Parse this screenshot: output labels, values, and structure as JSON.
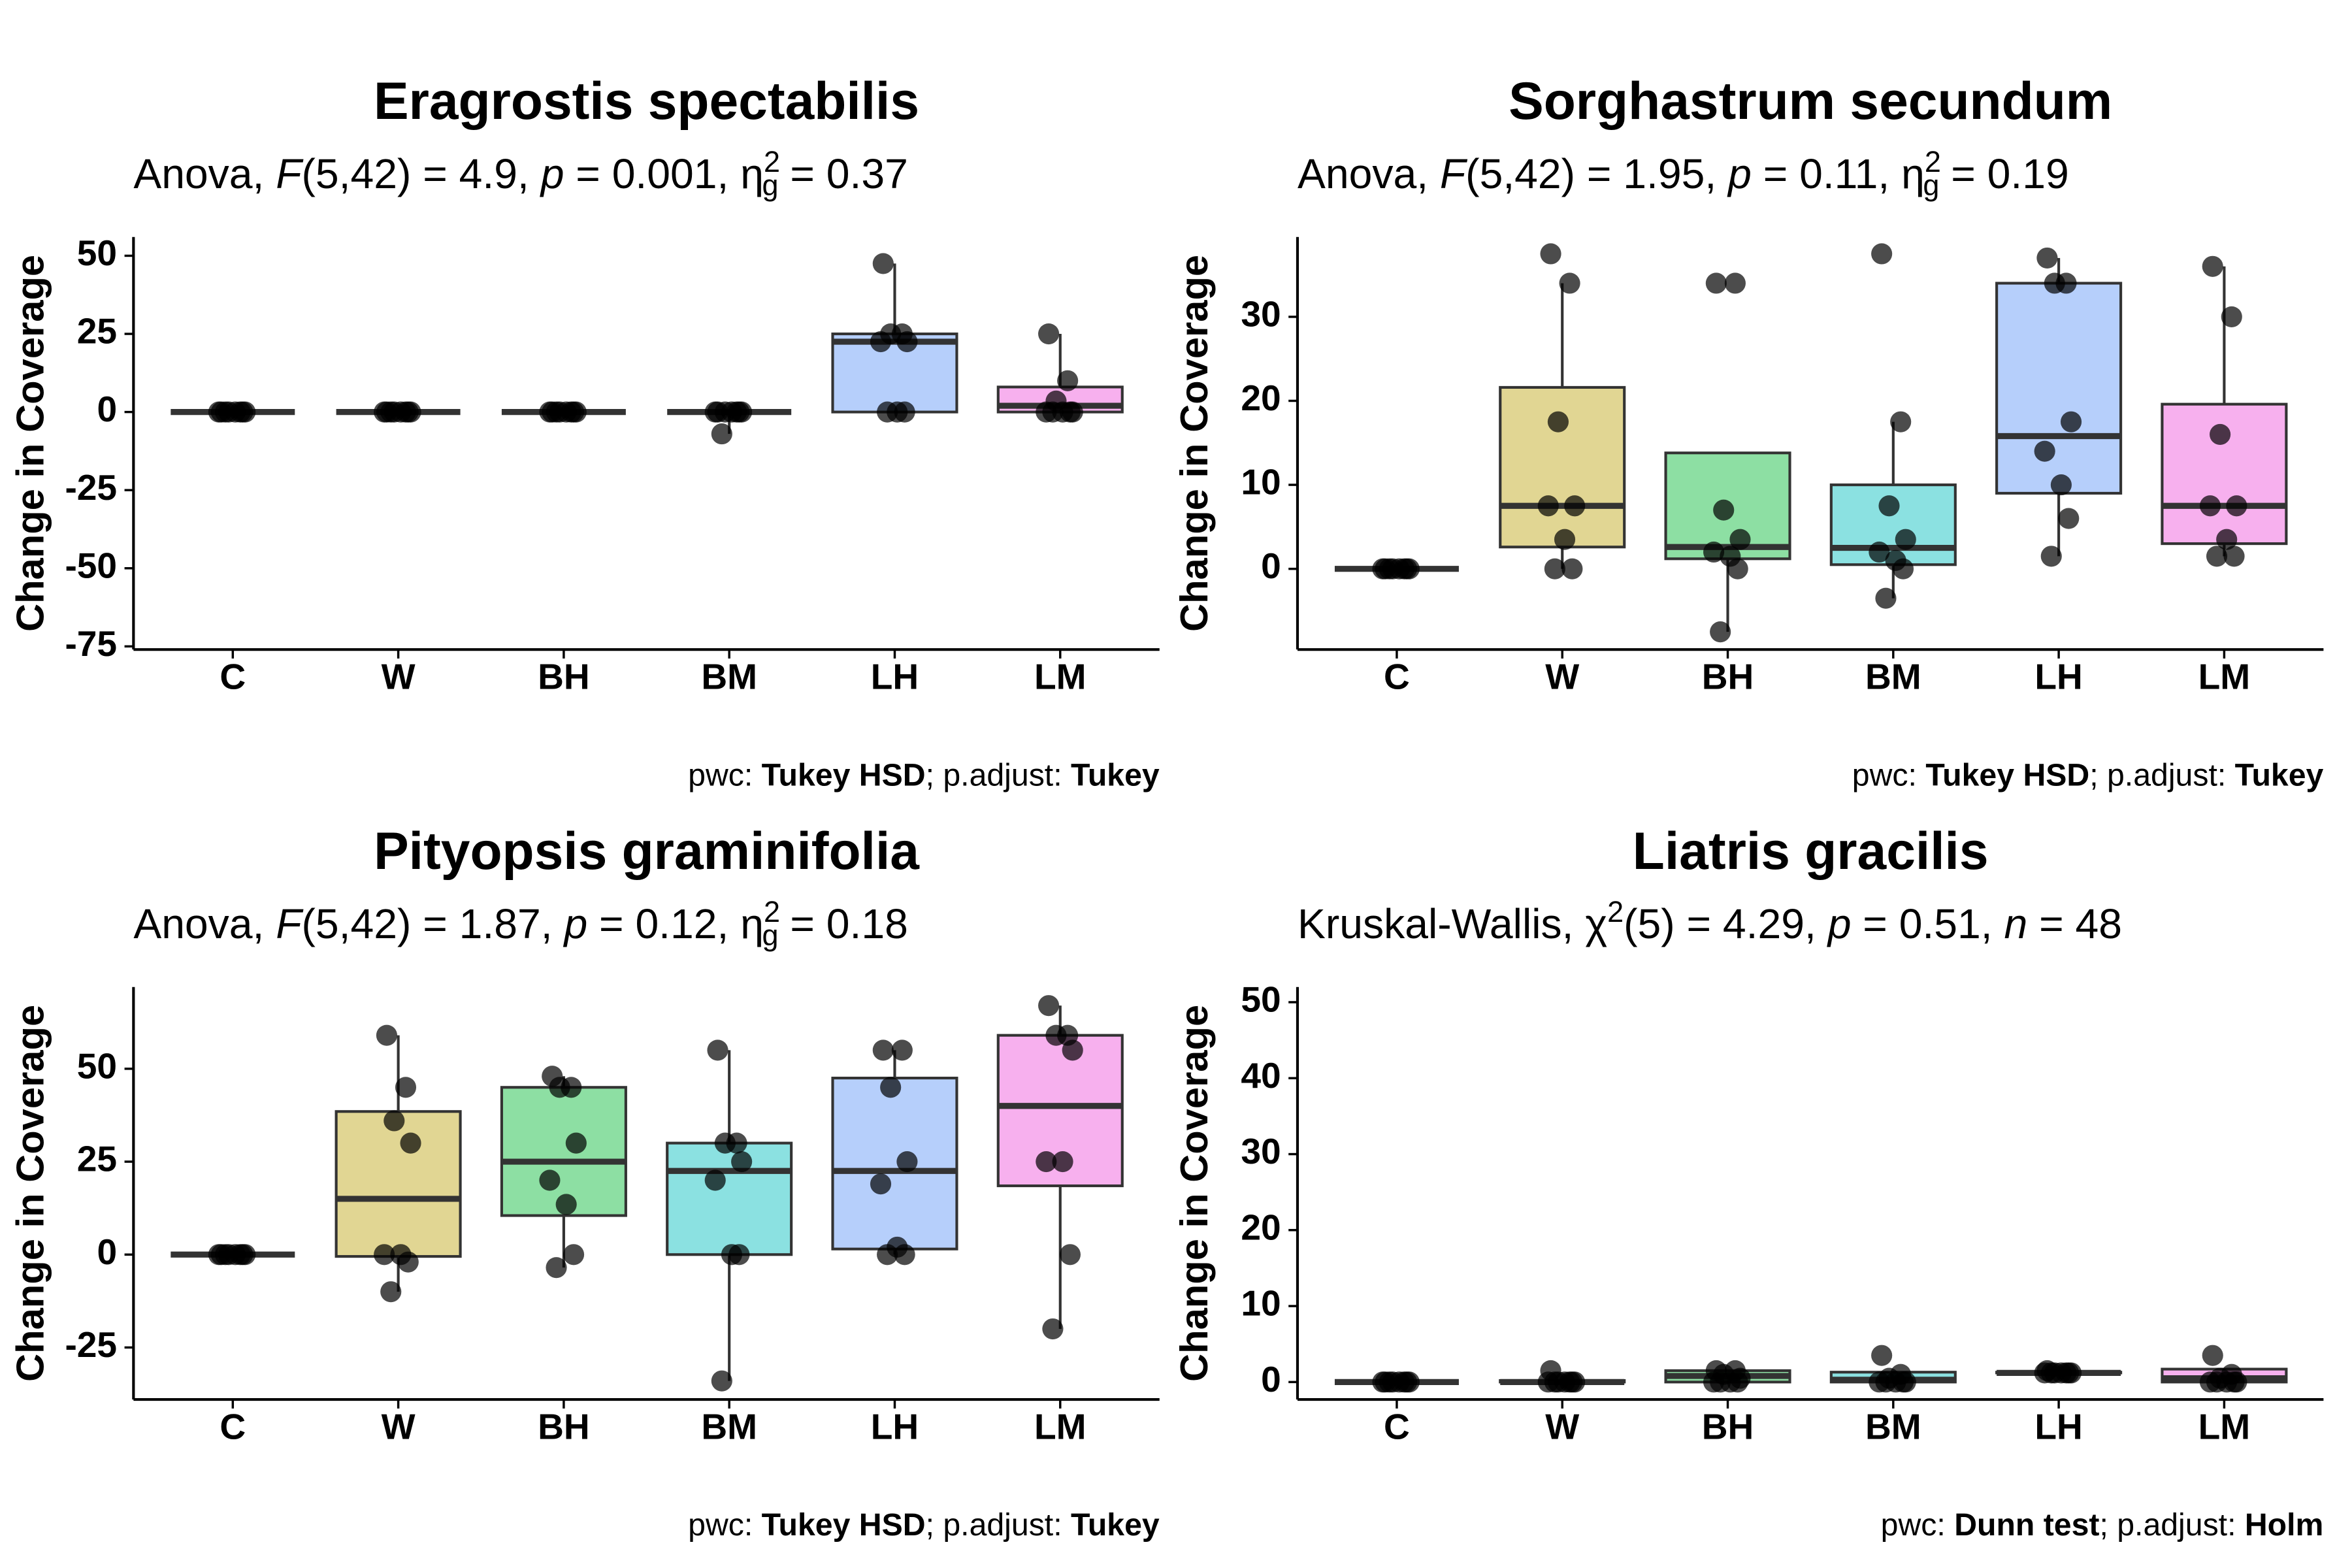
{
  "chart_data": [
    {
      "type": "box",
      "title": "Eragrostis spectabilis",
      "subtitle": [
        {
          "text": "Anova, ",
          "style": "normal"
        },
        {
          "text": "F",
          "style": "italic"
        },
        {
          "text": "(5,42) = 4.9, ",
          "style": "normal"
        },
        {
          "text": "p",
          "style": "italic"
        },
        {
          "text": " = 0.001, η",
          "style": "normal"
        },
        {
          "text": "2",
          "style": "sup"
        },
        {
          "text": "g",
          "style": "sub"
        },
        {
          "text": " = 0.37",
          "style": "normal"
        }
      ],
      "ylabel": "Change in Coverage",
      "categories": [
        "C",
        "W",
        "BH",
        "BM",
        "LH",
        "LM"
      ],
      "colors": [
        "#f4a6a0",
        "#c9b53a",
        "#2fc458",
        "#2cc8c8",
        "#7aa8f7",
        "#f070e0"
      ],
      "boxes": [
        {
          "low": 0,
          "q1": 0,
          "median": 0,
          "q3": 0,
          "high": 0
        },
        {
          "low": 0,
          "q1": 0,
          "median": 0,
          "q3": 0,
          "high": 0
        },
        {
          "low": 0,
          "q1": 0,
          "median": 0,
          "q3": 0,
          "high": 0
        },
        {
          "low": -7,
          "q1": 0,
          "median": 0,
          "q3": 0,
          "high": 0
        },
        {
          "low": 0,
          "q1": 0,
          "median": 22.5,
          "q3": 25,
          "high": 47.5
        },
        {
          "low": 0,
          "q1": 0,
          "median": 2,
          "q3": 8,
          "high": 25
        }
      ],
      "points": [
        [
          0,
          0,
          0,
          0,
          0,
          0,
          0,
          0
        ],
        [
          0,
          0,
          0,
          0,
          0,
          0,
          0,
          0
        ],
        [
          0,
          0,
          0,
          0,
          0,
          0,
          0,
          0
        ],
        [
          0,
          0,
          0,
          0,
          0,
          0,
          0,
          -7
        ],
        [
          47.5,
          25,
          25,
          22.5,
          22.5,
          0,
          0,
          0
        ],
        [
          25,
          10,
          3.5,
          0,
          0,
          0,
          0,
          0
        ]
      ],
      "ylim": [
        -76,
        56
      ],
      "yticks": [
        50,
        25,
        0,
        -25,
        -50,
        -75
      ],
      "caption": [
        {
          "text": "pwc: ",
          "style": "normal"
        },
        {
          "text": "Tukey HSD",
          "style": "bold"
        },
        {
          "text": "; p.adjust: ",
          "style": "normal"
        },
        {
          "text": "Tukey",
          "style": "bold"
        }
      ]
    },
    {
      "type": "box",
      "title": "Sorghastrum secundum",
      "subtitle": [
        {
          "text": "Anova, ",
          "style": "normal"
        },
        {
          "text": "F",
          "style": "italic"
        },
        {
          "text": "(5,42) = 1.95, ",
          "style": "normal"
        },
        {
          "text": "p",
          "style": "italic"
        },
        {
          "text": " = 0.11, η",
          "style": "normal"
        },
        {
          "text": "2",
          "style": "sup"
        },
        {
          "text": "g",
          "style": "sub"
        },
        {
          "text": " = 0.19",
          "style": "normal"
        }
      ],
      "ylabel": "Change in Coverage",
      "categories": [
        "C",
        "W",
        "BH",
        "BM",
        "LH",
        "LM"
      ],
      "colors": [
        "#f4a6a0",
        "#c9b53a",
        "#2fc458",
        "#2cc8c8",
        "#7aa8f7",
        "#f070e0"
      ],
      "boxes": [
        {
          "low": 0,
          "q1": 0,
          "median": 0,
          "q3": 0,
          "high": 0
        },
        {
          "low": 0,
          "q1": 2.6,
          "median": 7.5,
          "q3": 21.6,
          "high": 34
        },
        {
          "low": -7.5,
          "q1": 1.2,
          "median": 2.6,
          "q3": 13.8,
          "high": 13.8
        },
        {
          "low": -3.5,
          "q1": 0.5,
          "median": 2.5,
          "q3": 10,
          "high": 17.5
        },
        {
          "low": 1.5,
          "q1": 9,
          "median": 15.8,
          "q3": 34,
          "high": 37
        },
        {
          "low": 1.5,
          "q1": 3,
          "median": 7.5,
          "q3": 19.6,
          "high": 36
        }
      ],
      "points": [
        [
          0,
          0,
          0,
          0,
          0,
          0,
          0,
          0
        ],
        [
          37.5,
          34,
          17.5,
          7.5,
          7.5,
          3.5,
          0,
          0
        ],
        [
          34,
          34,
          7,
          3.5,
          2,
          1.5,
          0,
          -7.5
        ],
        [
          37.5,
          17.5,
          7.5,
          3.5,
          2,
          1,
          0,
          -3.5
        ],
        [
          37,
          34,
          34,
          17.5,
          14,
          10,
          6,
          1.5
        ],
        [
          36,
          30,
          16,
          7.5,
          7.5,
          3.5,
          1.5,
          1.5
        ]
      ],
      "ylim": [
        -9.6,
        39.5
      ],
      "yticks": [
        0,
        10,
        20,
        30
      ],
      "caption": [
        {
          "text": "pwc: ",
          "style": "normal"
        },
        {
          "text": "Tukey HSD",
          "style": "bold"
        },
        {
          "text": "; p.adjust: ",
          "style": "normal"
        },
        {
          "text": "Tukey",
          "style": "bold"
        }
      ]
    },
    {
      "type": "box",
      "title": "Pityopsis graminifolia",
      "subtitle": [
        {
          "text": "Anova, ",
          "style": "normal"
        },
        {
          "text": "F",
          "style": "italic"
        },
        {
          "text": "(5,42) = 1.87, ",
          "style": "normal"
        },
        {
          "text": "p",
          "style": "italic"
        },
        {
          "text": " = 0.12, η",
          "style": "normal"
        },
        {
          "text": "2",
          "style": "sup"
        },
        {
          "text": "g",
          "style": "sub"
        },
        {
          "text": " = 0.18",
          "style": "normal"
        }
      ],
      "ylabel": "Change in Coverage",
      "categories": [
        "C",
        "W",
        "BH",
        "BM",
        "LH",
        "LM"
      ],
      "colors": [
        "#f4a6a0",
        "#c9b53a",
        "#2fc458",
        "#2cc8c8",
        "#7aa8f7",
        "#f070e0"
      ],
      "boxes": [
        {
          "low": 0,
          "q1": 0,
          "median": 0,
          "q3": 0,
          "high": 0
        },
        {
          "low": -10,
          "q1": -0.5,
          "median": 15,
          "q3": 38.5,
          "high": 59
        },
        {
          "low": -3.5,
          "q1": 10.5,
          "median": 25,
          "q3": 45,
          "high": 48
        },
        {
          "low": -34,
          "q1": 0,
          "median": 22.5,
          "q3": 30,
          "high": 55
        },
        {
          "low": 0,
          "q1": 1.5,
          "median": 22.5,
          "q3": 47.5,
          "high": 55
        },
        {
          "low": -20,
          "q1": 18.5,
          "median": 40,
          "q3": 59,
          "high": 67
        }
      ],
      "points": [
        [
          0,
          0,
          0,
          0,
          0,
          0,
          0,
          0
        ],
        [
          59,
          45,
          36,
          30,
          0,
          0,
          -2,
          -10
        ],
        [
          48,
          45,
          45,
          30,
          20,
          13.5,
          0,
          -3.5
        ],
        [
          55,
          30,
          30,
          25,
          20,
          0,
          0,
          -34
        ],
        [
          55,
          55,
          45,
          25,
          19,
          2,
          0,
          0
        ],
        [
          67,
          59,
          59,
          55,
          25,
          25,
          0,
          -20
        ]
      ],
      "ylim": [
        -39,
        72
      ],
      "yticks": [
        50,
        25,
        0,
        -25
      ],
      "caption": [
        {
          "text": "pwc: ",
          "style": "normal"
        },
        {
          "text": "Tukey HSD",
          "style": "bold"
        },
        {
          "text": "; p.adjust: ",
          "style": "normal"
        },
        {
          "text": "Tukey",
          "style": "bold"
        }
      ]
    },
    {
      "type": "box",
      "title": "Liatris gracilis",
      "subtitle": [
        {
          "text": "Kruskal-Wallis, χ",
          "style": "normal"
        },
        {
          "text": "2",
          "style": "sup"
        },
        {
          "text": "(5) = 4.29, ",
          "style": "normal"
        },
        {
          "text": "p",
          "style": "italic"
        },
        {
          "text": " = 0.51, ",
          "style": "normal"
        },
        {
          "text": "n",
          "style": "italic"
        },
        {
          "text": " = 48",
          "style": "normal"
        }
      ],
      "ylabel": "Change in Coverage",
      "categories": [
        "C",
        "W",
        "BH",
        "BM",
        "LH",
        "LM"
      ],
      "colors": [
        "#f4a6a0",
        "#c9b53a",
        "#2fc458",
        "#2cc8c8",
        "#7aa8f7",
        "#f070e0"
      ],
      "boxes": [
        {
          "low": 0,
          "q1": 0,
          "median": 0,
          "q3": 0,
          "high": 0
        },
        {
          "low": 0,
          "q1": 0,
          "median": 0,
          "q3": 0.2,
          "high": 0.2
        },
        {
          "low": 0,
          "q1": 0,
          "median": 0.8,
          "q3": 1.5,
          "high": 1.5
        },
        {
          "low": 0,
          "q1": 0,
          "median": 0.3,
          "q3": 1.3,
          "high": 1.3
        },
        {
          "low": 1.2,
          "q1": 1.2,
          "median": 1.2,
          "q3": 1.3,
          "high": 1.3
        },
        {
          "low": 0,
          "q1": 0,
          "median": 0.5,
          "q3": 1.7,
          "high": 1.7
        }
      ],
      "points": [
        [
          0,
          0,
          0,
          0,
          0,
          0,
          0,
          0
        ],
        [
          1.5,
          0,
          0,
          0,
          0,
          0,
          0,
          0
        ],
        [
          1.5,
          1.5,
          1,
          0.5,
          0,
          0,
          0,
          0
        ],
        [
          3.5,
          1,
          0.5,
          0,
          0,
          0,
          0,
          0
        ],
        [
          1.5,
          1.2,
          1.2,
          1.2,
          1.2,
          1.2,
          1.2,
          1.2
        ],
        [
          3.5,
          1,
          0.5,
          0,
          0,
          0,
          0,
          0
        ]
      ],
      "ylim": [
        -2.3,
        52
      ],
      "yticks": [
        0,
        10,
        20,
        30,
        40,
        50
      ],
      "caption": [
        {
          "text": "pwc: ",
          "style": "normal"
        },
        {
          "text": "Dunn test",
          "style": "bold"
        },
        {
          "text": "; p.adjust: ",
          "style": "normal"
        },
        {
          "text": "Holm",
          "style": "bold"
        }
      ]
    }
  ]
}
